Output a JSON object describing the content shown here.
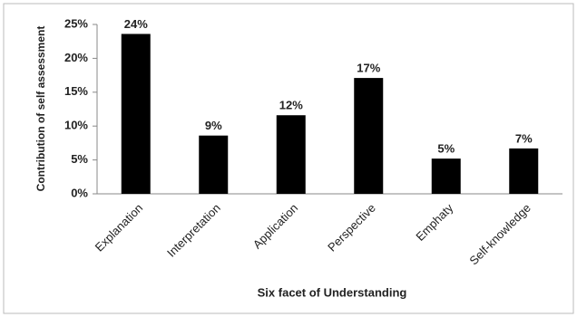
{
  "chart_data": {
    "type": "bar",
    "x_label": "Six facet of Understanding",
    "y_label": "Contribution of self assessment",
    "categories": [
      "Explanation",
      "Interpretation",
      "Application",
      "Perspective",
      "Emphaty",
      "Self-knowledge"
    ],
    "values": [
      23.6,
      8.6,
      11.6,
      17.1,
      5.2,
      6.7
    ],
    "value_labels": [
      "24%",
      "9%",
      "12%",
      "17%",
      "5%",
      "7%"
    ],
    "color": "#000000",
    "ylim": [
      0,
      25
    ],
    "yticks": [
      {
        "value": 0,
        "label": "0%"
      },
      {
        "value": 5,
        "label": "5%"
      },
      {
        "value": 10,
        "label": "10%"
      },
      {
        "value": 15,
        "label": "15%"
      },
      {
        "value": 20,
        "label": "20%"
      },
      {
        "value": 25,
        "label": "25%"
      }
    ],
    "grid": false
  }
}
